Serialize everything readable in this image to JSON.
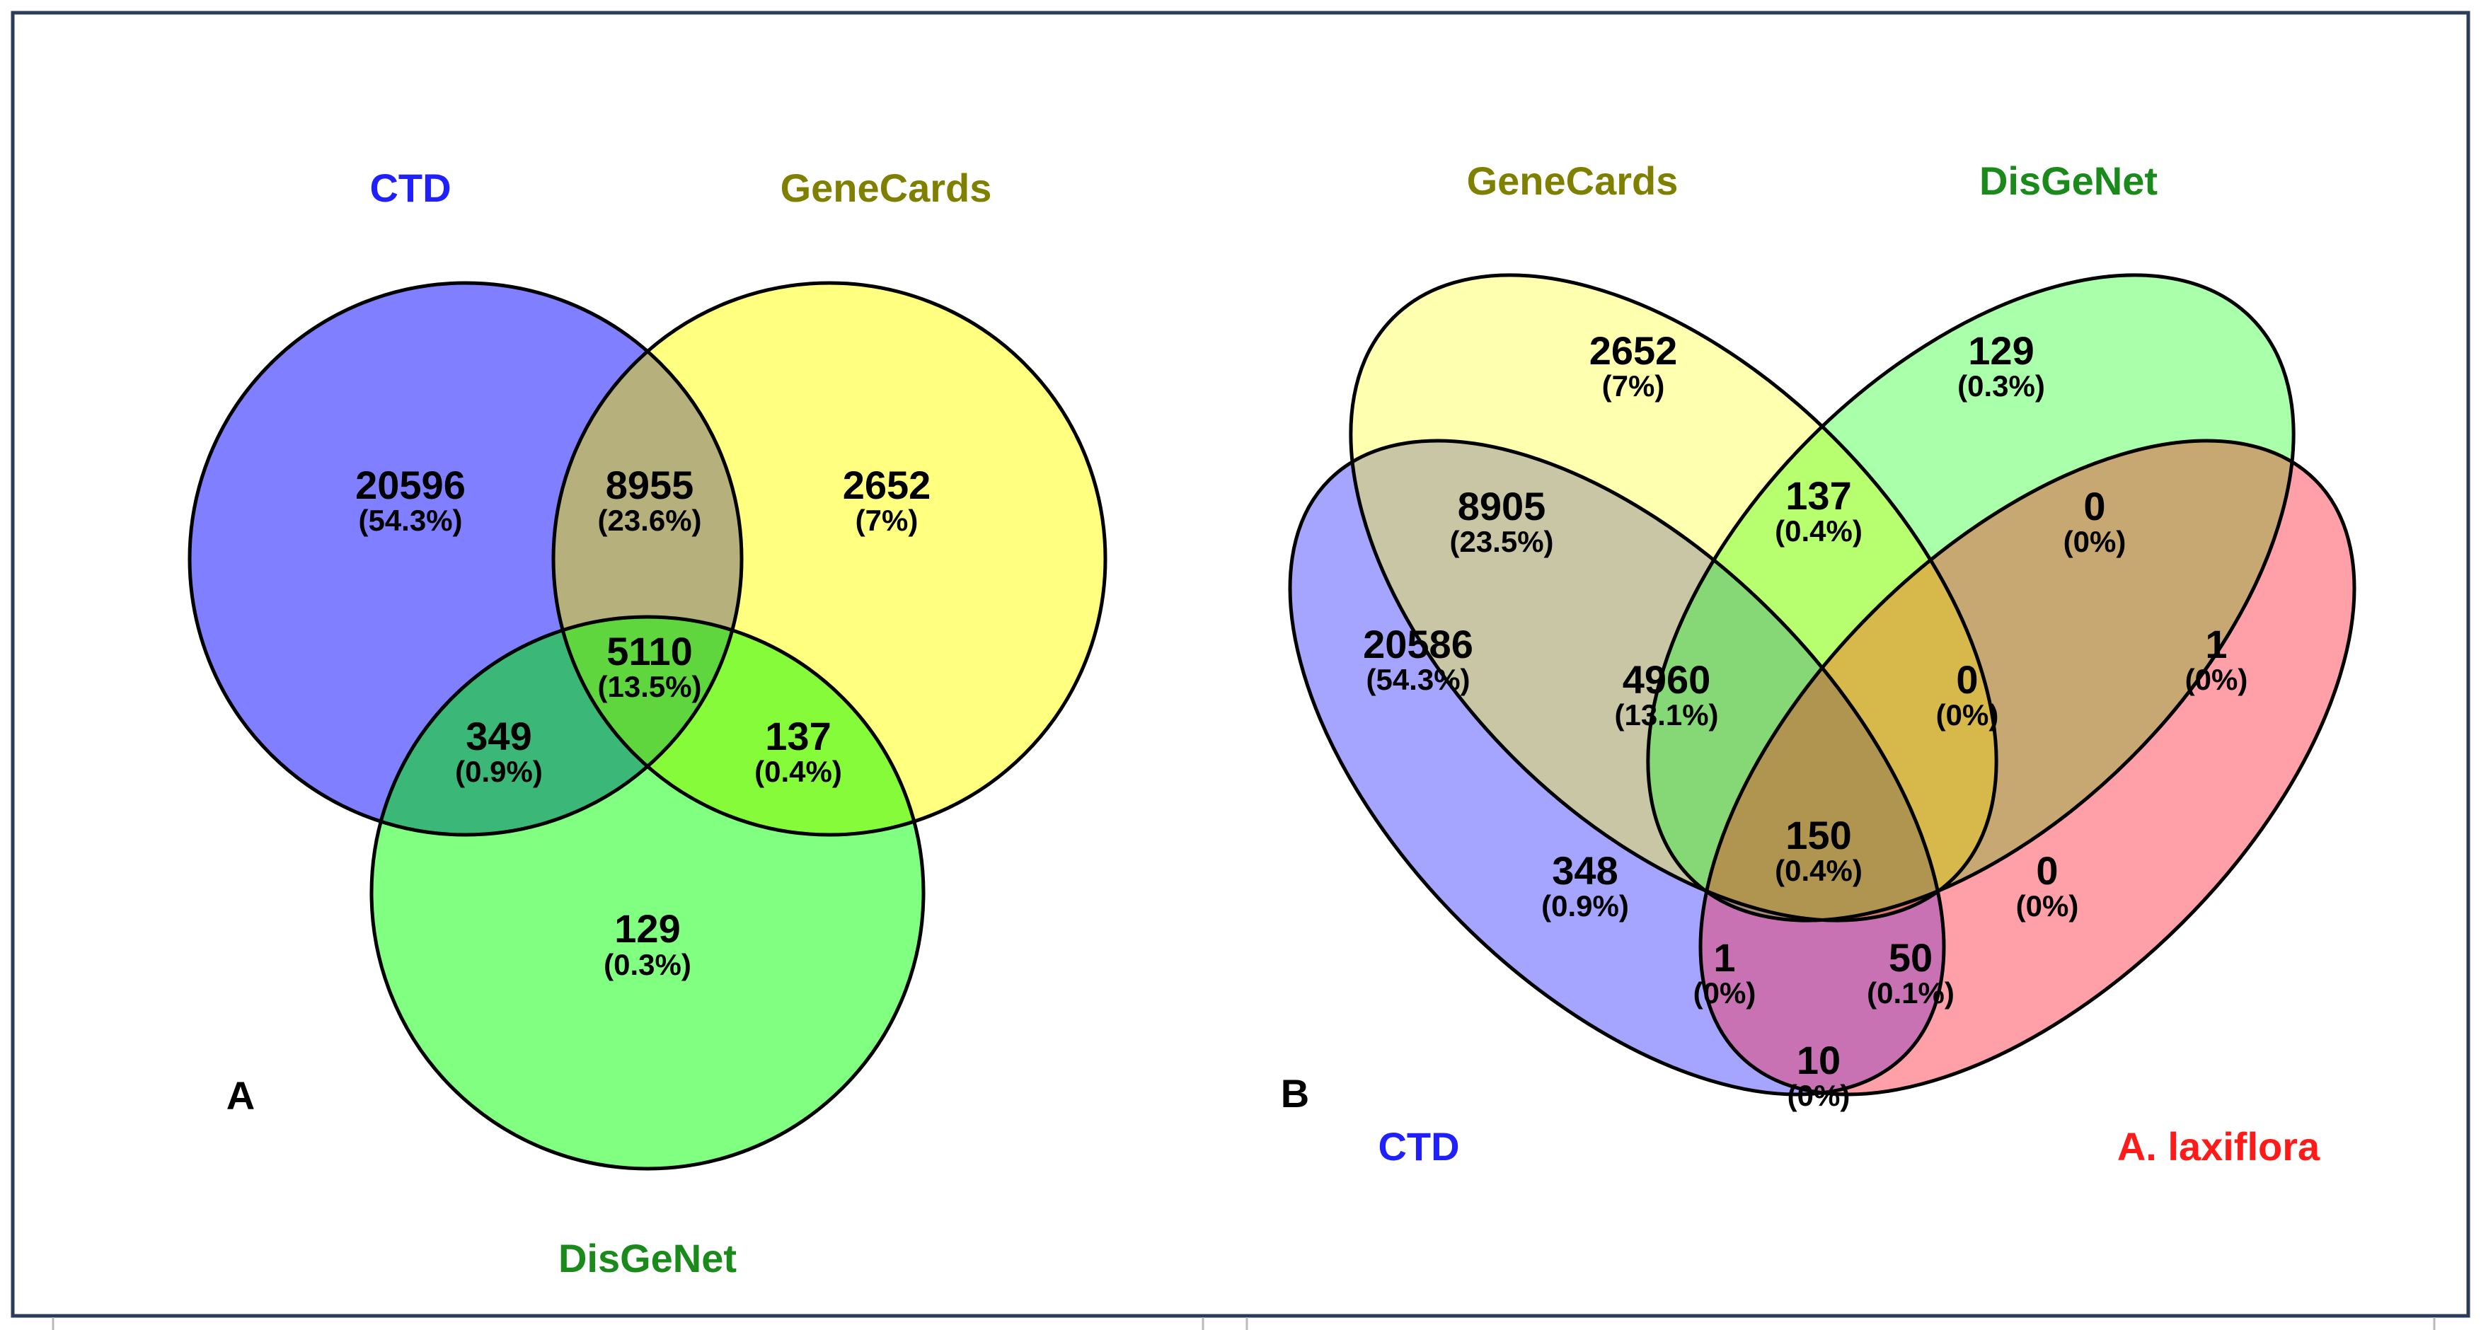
{
  "colors": {
    "ctd": "#2020ff",
    "genecards": "#808000",
    "disgenet": "#1a8a1a",
    "alaxiflora": "#ff1a1a",
    "ctd_fill": "#7f7fff",
    "genecards_fill": "#ffff80",
    "disgenet_fill": "#80ff80",
    "alaxiflora_fill": "#ffa0a8"
  },
  "panel_a": {
    "panel_label": "A",
    "sets": {
      "ctd": "CTD",
      "genecards": "GeneCards",
      "disgenet": "DisGeNet"
    },
    "regions": {
      "ctd_only": {
        "count": "20596",
        "percent": "(54.3%)"
      },
      "ctd_genecards": {
        "count": "8955",
        "percent": "(23.6%)"
      },
      "genecards_only": {
        "count": "2652",
        "percent": "(7%)"
      },
      "all_three": {
        "count": "5110",
        "percent": "(13.5%)"
      },
      "ctd_disgenet": {
        "count": "349",
        "percent": "(0.9%)"
      },
      "genecards_disgenet": {
        "count": "137",
        "percent": "(0.4%)"
      },
      "disgenet_only": {
        "count": "129",
        "percent": "(0.3%)"
      }
    }
  },
  "panel_b": {
    "panel_label": "B",
    "sets": {
      "genecards": "GeneCards",
      "disgenet": "DisGeNet",
      "ctd": "CTD",
      "alaxiflora": "A. laxiflora"
    },
    "regions": {
      "genecards_only": {
        "count": "2652",
        "percent": "(7%)"
      },
      "disgenet_only": {
        "count": "129",
        "percent": "(0.3%)"
      },
      "ctd_genecards": {
        "count": "8905",
        "percent": "(23.5%)"
      },
      "genecards_disgenet": {
        "count": "137",
        "percent": "(0.4%)"
      },
      "disgenet_alaxiflora": {
        "count": "0",
        "percent": "(0%)"
      },
      "ctd_only": {
        "count": "20586",
        "percent": "(54.3%)"
      },
      "ctd_genecards_disgenet": {
        "count": "4960",
        "percent": "(13.1%)"
      },
      "genecards_disgenet_alax": {
        "count": "0",
        "percent": "(0%)"
      },
      "alaxiflora_only": {
        "count": "1",
        "percent": "(0%)"
      },
      "all_four": {
        "count": "150",
        "percent": "(0.4%)"
      },
      "ctd_disgenet": {
        "count": "348",
        "percent": "(0.9%)"
      },
      "genecards_alaxiflora": {
        "count": "0",
        "percent": "(0%)"
      },
      "ctd_disgenet_alax": {
        "count": "1",
        "percent": "(0%)"
      },
      "ctd_genecards_alax": {
        "count": "50",
        "percent": "(0.1%)"
      },
      "ctd_alaxiflora": {
        "count": "10",
        "percent": "(0%)"
      }
    }
  }
}
